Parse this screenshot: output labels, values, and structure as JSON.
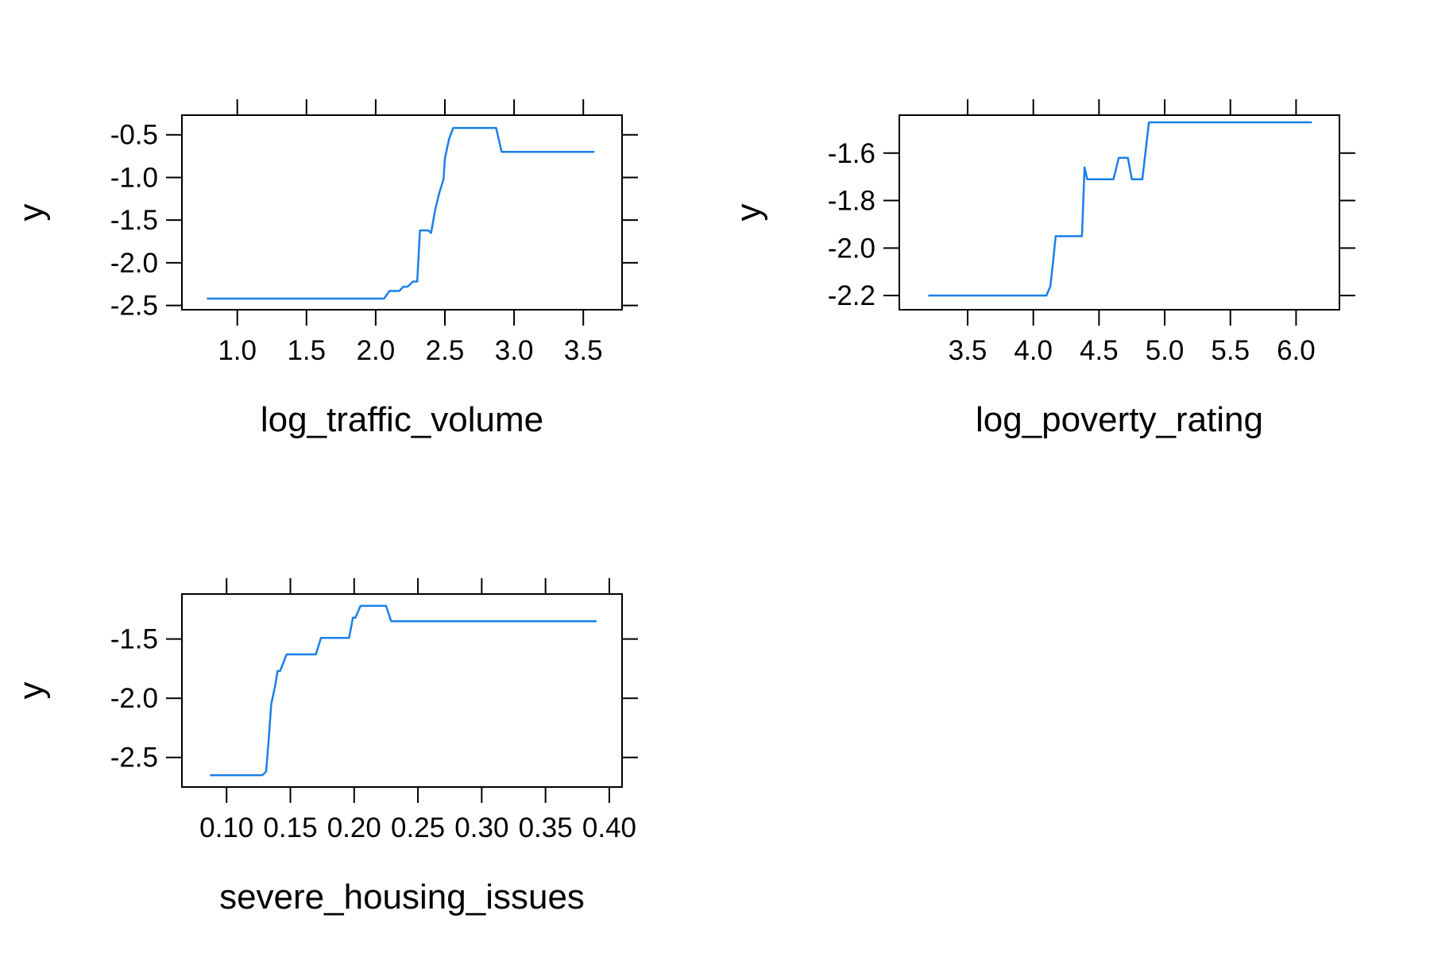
{
  "chart_data": [
    {
      "type": "line",
      "title": "",
      "xlabel": "log_traffic_volume",
      "ylabel": "y",
      "xlim": [
        0.6,
        3.78
      ],
      "ylim": [
        -2.55,
        -0.27
      ],
      "xticks": [
        1.0,
        1.5,
        2.0,
        2.5,
        3.0,
        3.5
      ],
      "xtick_labels": [
        "1.0",
        "1.5",
        "2.0",
        "2.5",
        "3.0",
        "3.5"
      ],
      "yticks": [
        -0.5,
        -1.0,
        -1.5,
        -2.0,
        -2.5
      ],
      "ytick_labels": [
        "-0.5",
        "-1.0",
        "-1.5",
        "-2.0",
        "-2.5"
      ],
      "line_color": "#1a7fe8",
      "grid": false,
      "series": [
        {
          "x": [
            0.78,
            2.06,
            2.1,
            2.17,
            2.2,
            2.23,
            2.27,
            2.3,
            2.32,
            2.38,
            2.4,
            2.43,
            2.46,
            2.49,
            2.5,
            2.53,
            2.56,
            2.87,
            2.91,
            3.58
          ],
          "y": [
            -2.42,
            -2.42,
            -2.33,
            -2.33,
            -2.28,
            -2.28,
            -2.22,
            -2.22,
            -1.62,
            -1.62,
            -1.65,
            -1.38,
            -1.18,
            -1.02,
            -0.78,
            -0.55,
            -0.42,
            -0.42,
            -0.7,
            -0.7
          ]
        }
      ]
    },
    {
      "type": "line",
      "title": "",
      "xlabel": "log_poverty_rating",
      "ylabel": "y",
      "xlim": [
        2.98,
        6.33
      ],
      "ylim": [
        -2.26,
        -1.44
      ],
      "xticks": [
        3.5,
        4.0,
        4.5,
        5.0,
        5.5,
        6.0
      ],
      "xtick_labels": [
        "3.5",
        "4.0",
        "4.5",
        "5.0",
        "5.5",
        "6.0"
      ],
      "yticks": [
        -1.6,
        -1.8,
        -2.0,
        -2.2
      ],
      "ytick_labels": [
        "-1.6",
        "-1.8",
        "-2.0",
        "-2.2"
      ],
      "line_color": "#1a7fe8",
      "grid": false,
      "series": [
        {
          "x": [
            3.2,
            4.1,
            4.13,
            4.15,
            4.17,
            4.37,
            4.39,
            4.41,
            4.61,
            4.65,
            4.72,
            4.75,
            4.83,
            4.88,
            6.12
          ],
          "y": [
            -2.2,
            -2.2,
            -2.16,
            -2.06,
            -1.95,
            -1.95,
            -1.66,
            -1.71,
            -1.71,
            -1.62,
            -1.62,
            -1.71,
            -1.71,
            -1.47,
            -1.47
          ]
        }
      ]
    },
    {
      "type": "line",
      "title": "",
      "xlabel": "severe_housing_issues",
      "ylabel": "y",
      "xlim": [
        0.065,
        0.41
      ],
      "ylim": [
        -2.75,
        -1.12
      ],
      "xticks": [
        0.1,
        0.15,
        0.2,
        0.25,
        0.3,
        0.35,
        0.4
      ],
      "xtick_labels": [
        "0.10",
        "0.15",
        "0.20",
        "0.25",
        "0.30",
        "0.35",
        "0.40"
      ],
      "yticks": [
        -1.5,
        -2.0,
        -2.5
      ],
      "ytick_labels": [
        "-1.5",
        "-2.0",
        "-2.5"
      ],
      "line_color": "#1a7fe8",
      "grid": false,
      "series": [
        {
          "x": [
            0.087,
            0.128,
            0.131,
            0.133,
            0.135,
            0.138,
            0.14,
            0.142,
            0.147,
            0.17,
            0.174,
            0.196,
            0.199,
            0.201,
            0.205,
            0.225,
            0.229,
            0.39
          ],
          "y": [
            -2.65,
            -2.65,
            -2.62,
            -2.35,
            -2.05,
            -1.9,
            -1.77,
            -1.77,
            -1.63,
            -1.63,
            -1.49,
            -1.49,
            -1.32,
            -1.32,
            -1.22,
            -1.22,
            -1.35,
            -1.35
          ]
        }
      ]
    }
  ]
}
